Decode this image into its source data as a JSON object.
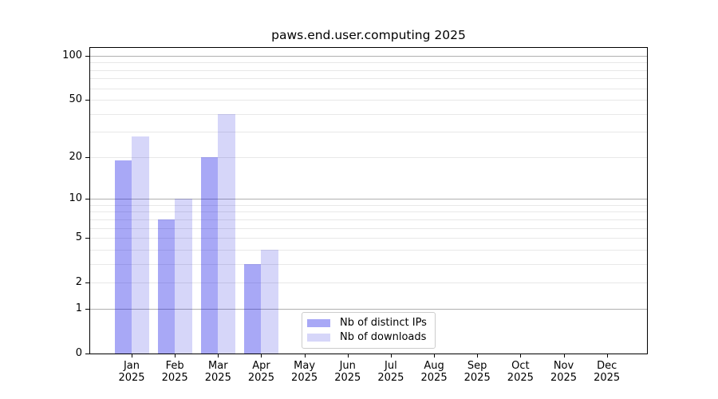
{
  "chart_data": {
    "type": "bar",
    "title": "paws.end.user.computing 2025",
    "categories": [
      "Jan",
      "Feb",
      "Mar",
      "Apr",
      "May",
      "Jun",
      "Jul",
      "Aug",
      "Sep",
      "Oct",
      "Nov",
      "Dec"
    ],
    "x_year": "2025",
    "series": [
      {
        "name": "Nb of distinct IPs",
        "color": "rgba(0,0,230,0.34)",
        "values": [
          19,
          7,
          20,
          3,
          0,
          0,
          0,
          0,
          0,
          0,
          0,
          0
        ]
      },
      {
        "name": "Nb of downloads",
        "color": "rgba(0,0,220,0.16)",
        "values": [
          28,
          10,
          40,
          4,
          0,
          0,
          0,
          0,
          0,
          0,
          0,
          0
        ]
      }
    ],
    "yscale": "log1p",
    "ylim": [
      0,
      100
    ],
    "y_ticks": [
      0,
      1,
      2,
      5,
      10,
      20,
      50,
      100
    ],
    "grid": "on",
    "grid_major_values": [
      1,
      10,
      100
    ],
    "grid_minor_values": [
      2,
      3,
      4,
      5,
      6,
      7,
      8,
      9,
      20,
      30,
      40,
      50,
      60,
      70,
      80,
      90
    ],
    "legend_position": "lower center"
  },
  "colors": {
    "grid_major": "#b0b0b0",
    "grid_minor": "#e8e8e8",
    "spine": "#000000",
    "legend_border": "#cccccc",
    "text": "#000000",
    "background": "#ffffff"
  }
}
